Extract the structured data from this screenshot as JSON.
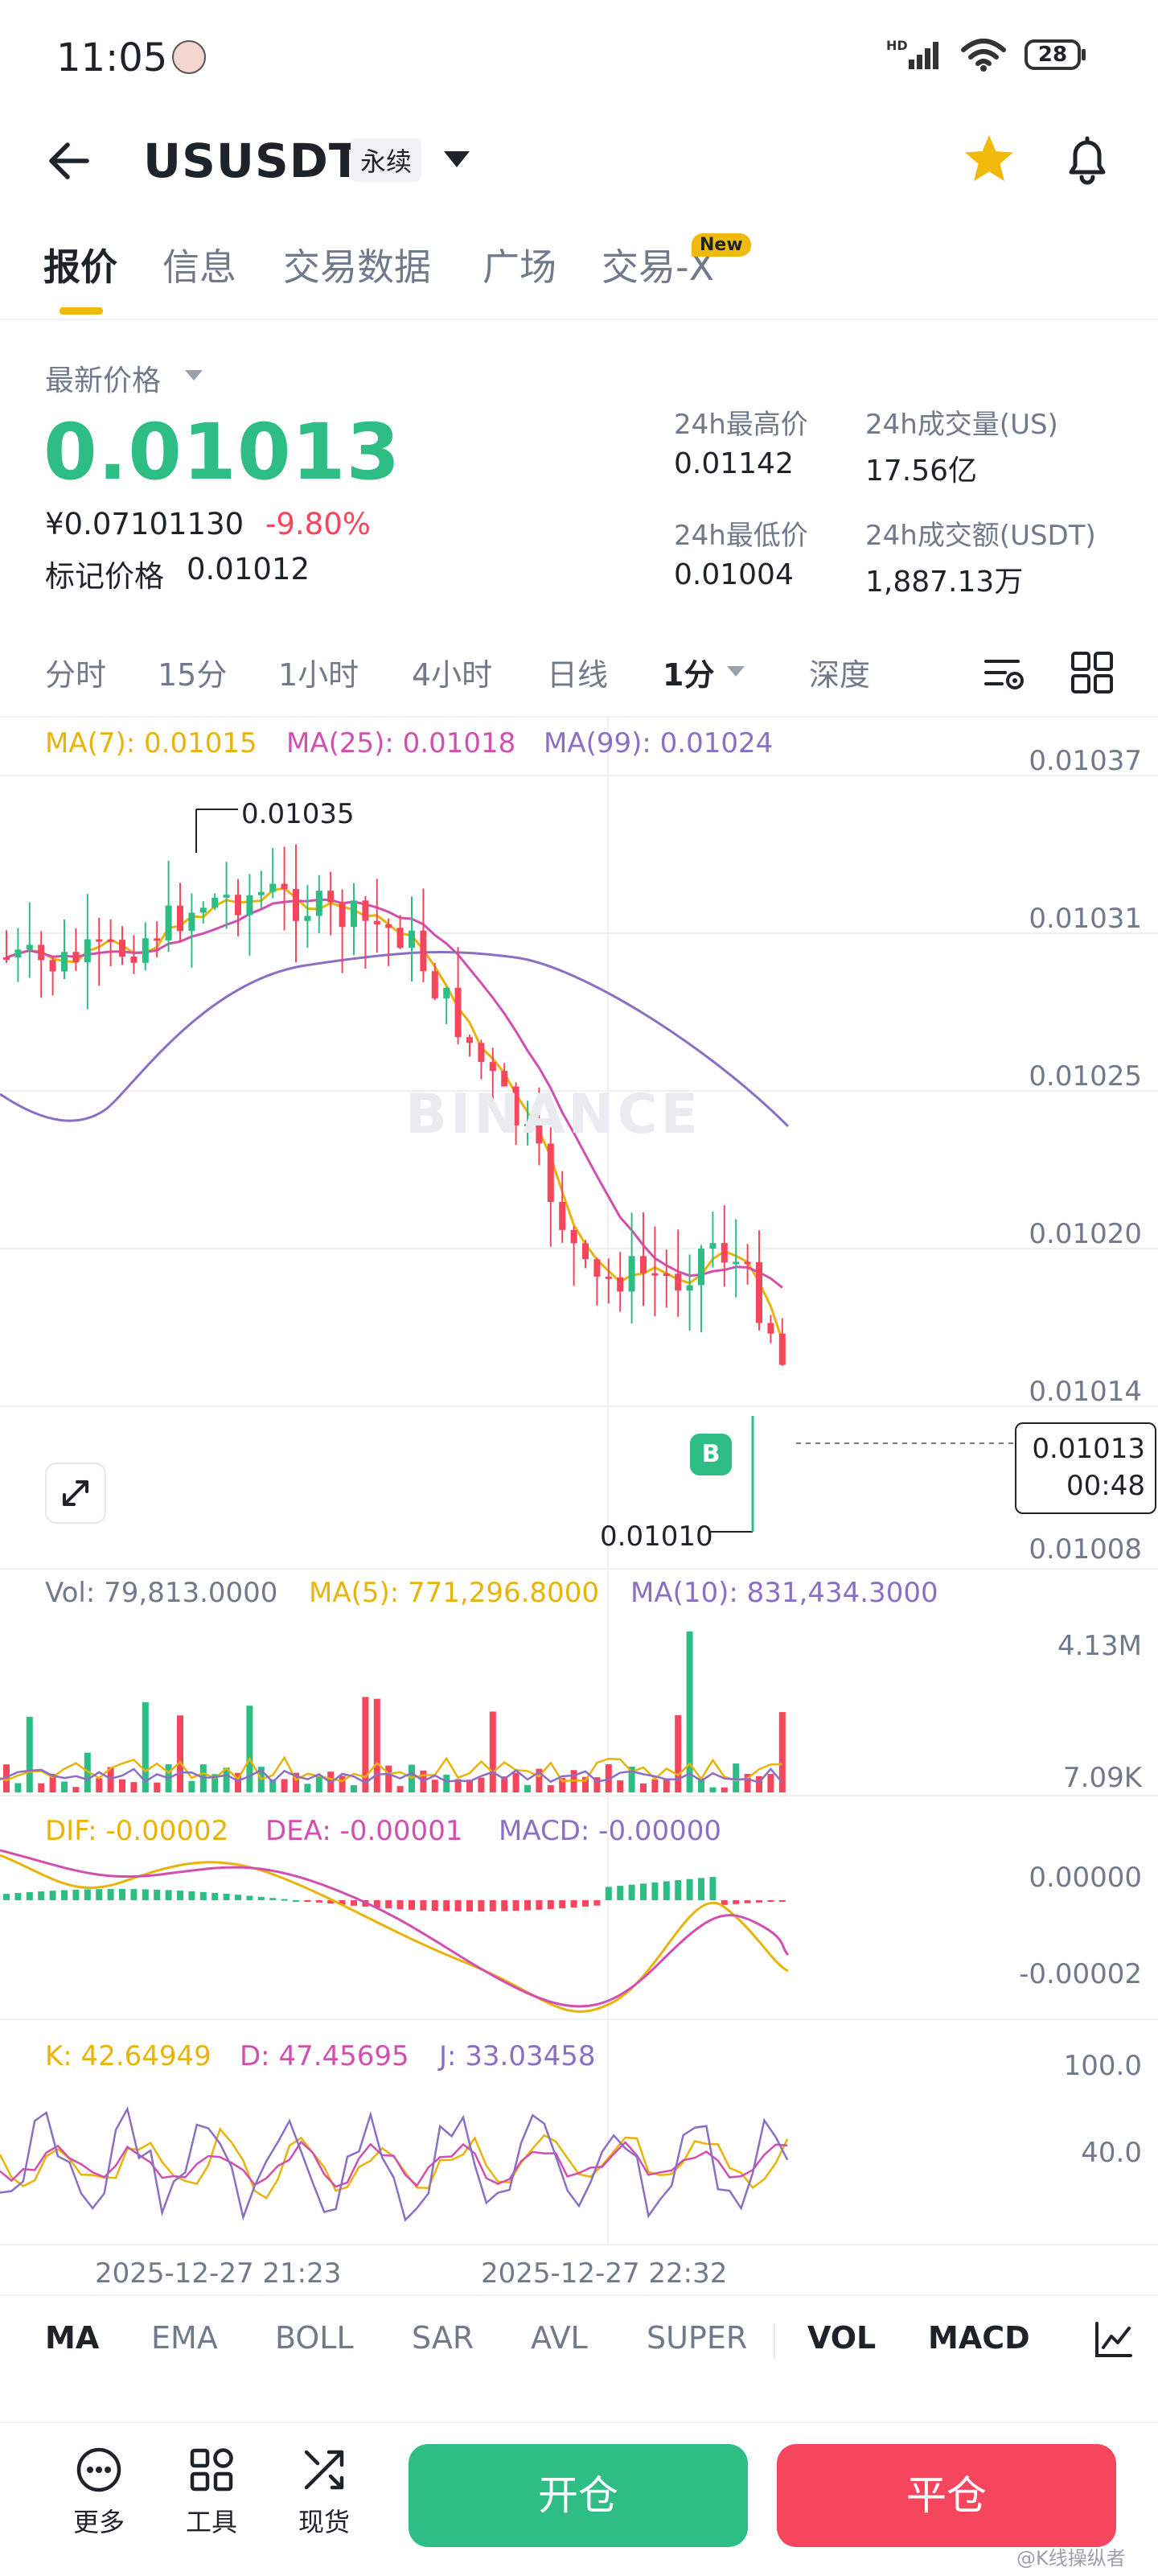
{
  "status_bar": {
    "time": "11:05",
    "battery": "28"
  },
  "header": {
    "pair": "USUSDT",
    "contract_type": "永续"
  },
  "tabs": [
    {
      "label": "报价"
    },
    {
      "label": "信息"
    },
    {
      "label": "交易数据"
    },
    {
      "label": "广场"
    },
    {
      "label": "交易-X"
    }
  ],
  "new_badge": "New",
  "price": {
    "label": "最新价格",
    "last": "0.01013",
    "cny": "¥0.07101130",
    "change": "-9.80%",
    "mark_label": "标记价格",
    "mark_value": "0.01012"
  },
  "stats": {
    "high_label": "24h最高价",
    "high_value": "0.01142",
    "low_label": "24h最低价",
    "low_value": "0.01004",
    "vol_label": "24h成交量(US)",
    "vol_value": "17.56亿",
    "amount_label": "24h成交额(USDT)",
    "amount_value": "1,887.13万"
  },
  "intervals": [
    {
      "label": "分时"
    },
    {
      "label": "15分"
    },
    {
      "label": "1小时"
    },
    {
      "label": "4小时"
    },
    {
      "label": "日线"
    },
    {
      "label": "1分"
    },
    {
      "label": "深度"
    }
  ],
  "ma_legend": {
    "ma7": "MA(7): 0.01015",
    "ma25": "MA(25): 0.01018",
    "ma99": "MA(99): 0.01024"
  },
  "price_axis": [
    "0.01037",
    "0.01031",
    "0.01025",
    "0.01020",
    "0.01014",
    "0.01008"
  ],
  "annotations": {
    "high": "0.01035",
    "low": "0.01010",
    "buy": "B"
  },
  "current_price_tag": {
    "price": "0.01013",
    "countdown": "00:48"
  },
  "watermark": "BINANCE",
  "vol_legend": {
    "vol": "Vol: 79,813.0000",
    "ma5": "MA(5): 771,296.8000",
    "ma10": "MA(10): 831,434.3000"
  },
  "vol_axis": [
    "4.13M",
    "7.09K"
  ],
  "macd_legend": {
    "dif": "DIF: -0.00002",
    "dea": "DEA: -0.00001",
    "macd": "MACD: -0.00000"
  },
  "macd_axis": [
    "0.00000",
    "-0.00002"
  ],
  "kdj_legend": {
    "k": "K: 42.64949",
    "d": "D: 47.45695",
    "j": "J: 33.03458"
  },
  "kdj_axis": [
    "100.0",
    "40.0"
  ],
  "time_axis": [
    "2025-12-27 21:23",
    "2025-12-27 22:32"
  ],
  "indicators": [
    {
      "label": "MA"
    },
    {
      "label": "EMA"
    },
    {
      "label": "BOLL"
    },
    {
      "label": "SAR"
    },
    {
      "label": "AVL"
    },
    {
      "label": "SUPER"
    },
    {
      "label": "VOL"
    },
    {
      "label": "MACD"
    }
  ],
  "bottom_nav": [
    {
      "label": "更多"
    },
    {
      "label": "工具"
    },
    {
      "label": "现货"
    }
  ],
  "actions": {
    "open": "开仓",
    "close": "平仓"
  },
  "footer_watermark": "@K线操纵者",
  "colors": {
    "up": "#2ebd85",
    "down": "#f6465d",
    "accent": "#f0b90b",
    "ma7": "#e8b30a",
    "ma25": "#d14fb0",
    "ma99": "#8a6fc4"
  },
  "chart_data": {
    "type": "candlestick",
    "interval": "1分",
    "price_range": [
      0.01008,
      0.01037
    ],
    "high_marker": 0.01035,
    "low_marker": 0.0101,
    "last_price": 0.01013,
    "x_ticks": [
      "2025-12-27 21:23",
      "2025-12-27 22:32"
    ],
    "ma_latest": {
      "MA(7)": 0.01015,
      "MA(25)": 0.01018,
      "MA(99)": 0.01024
    },
    "volume": {
      "latest": 79813.0,
      "ma5": 771296.8,
      "ma10": 831434.3,
      "axis_max": "4.13M",
      "axis_min": "7.09K"
    },
    "macd": {
      "dif": -2e-05,
      "dea": -1e-05,
      "macd": -0.0
    },
    "kdj": {
      "k": 42.64949,
      "d": 47.45695,
      "j": 33.03458
    }
  }
}
